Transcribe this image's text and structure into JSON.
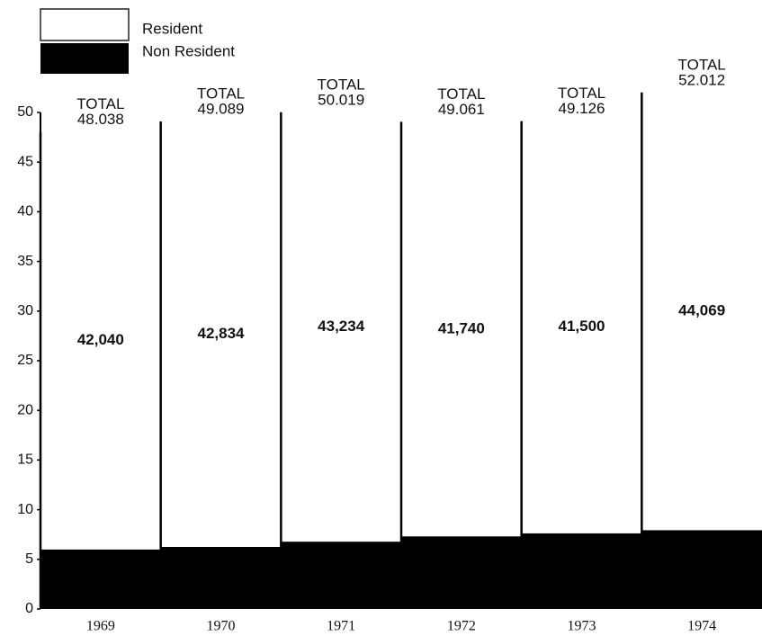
{
  "chart_data": {
    "type": "stacked_bar",
    "categories": [
      "1969",
      "1970",
      "1971",
      "1972",
      "1973",
      "1974"
    ],
    "series": [
      {
        "name": "Non Resident",
        "color": "#000000",
        "values": [
          5.998,
          6.255,
          6.785,
          7.321,
          7.626,
          7.943
        ]
      },
      {
        "name": "Resident",
        "color": "#ffffff",
        "values": [
          42.04,
          42.834,
          43.234,
          41.74,
          41.5,
          44.069
        ],
        "value_labels": [
          "42,040",
          "42,834",
          "43,234",
          "41,740",
          "41,500",
          "44,069"
        ]
      }
    ],
    "total_label": "TOTAL",
    "totals": [
      48.038,
      49.089,
      50.019,
      49.061,
      49.126,
      52.012
    ],
    "ylim": [
      0,
      50
    ],
    "yticks": [
      0,
      5,
      10,
      15,
      20,
      25,
      30,
      35,
      40,
      45,
      50
    ]
  }
}
